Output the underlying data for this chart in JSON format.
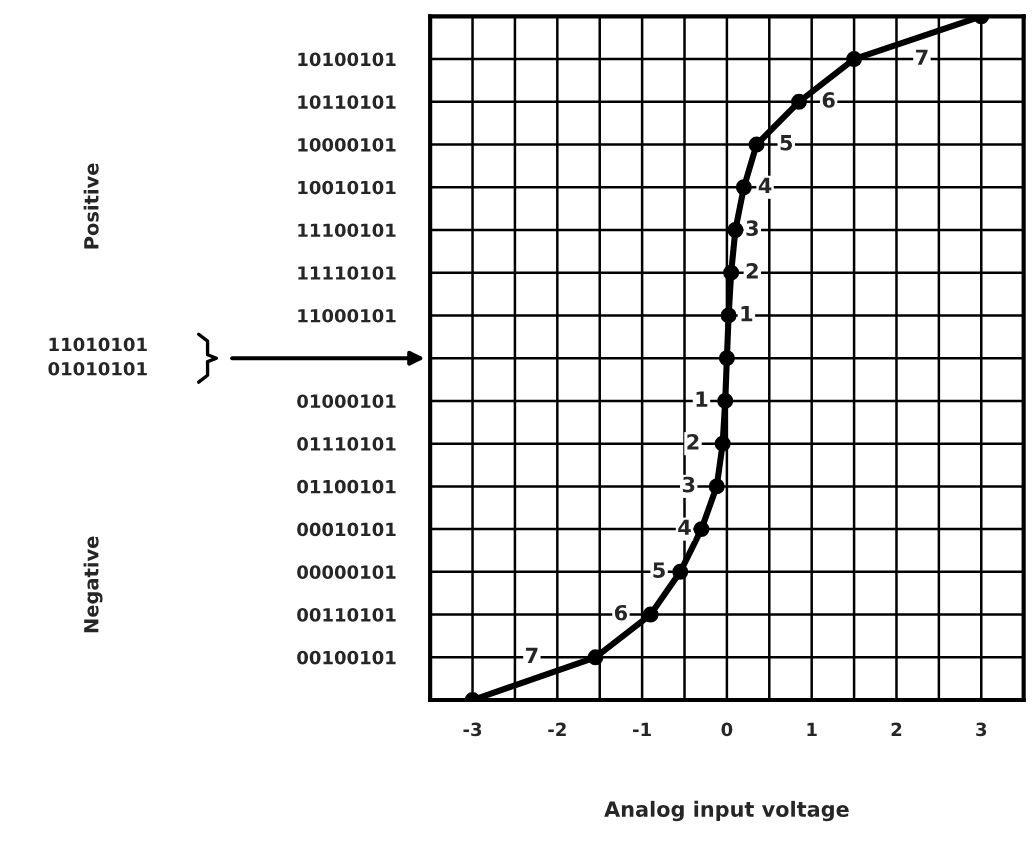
{
  "chart_data": {
    "type": "line",
    "orientation": "horizontal",
    "xlabel": "Analog input voltage",
    "categories": [
      null,
      "10100101",
      "10110101",
      "10000101",
      "10010101",
      "11100101",
      "11110101",
      "11000101",
      null,
      "01000101",
      "01110101",
      "01100101",
      "00010101",
      "00000101",
      "00110101",
      "00100101",
      null
    ],
    "series": [
      {
        "color": "#000000",
        "values": [
          3.0,
          1.5,
          0.85,
          0.35,
          0.2,
          0.1,
          0.05,
          0.02,
          0,
          -0.02,
          -0.05,
          -0.12,
          -0.3,
          -0.55,
          -0.9,
          -1.55,
          -3.0
        ]
      }
    ],
    "marker": "circle",
    "line_style": "solid",
    "xlim": [
      -3.5,
      3.5
    ],
    "xticks": [
      {
        "value": -3.5,
        "label": null
      },
      -3,
      {
        "value": -2.5,
        "label": null
      },
      -2,
      {
        "value": -1.5,
        "label": null
      },
      -1,
      {
        "value": -0.5,
        "label": null
      },
      0,
      {
        "value": 0.5,
        "label": null
      },
      1,
      {
        "value": 1.5,
        "label": null
      },
      2,
      {
        "value": 2.5,
        "label": null
      },
      3
    ],
    "grid": true,
    "annotations": [
      "Positive",
      "Negative",
      "11010101\n01010101",
      {
        "text": "1",
        "x": 0.23,
        "y": "11000101"
      },
      {
        "text": "2",
        "x": 0.3,
        "y": "11110101"
      },
      {
        "text": "3",
        "x": 0.3,
        "y": "11100101"
      },
      {
        "text": "4",
        "x": 0.45,
        "y": "10010101"
      },
      {
        "text": "5",
        "x": 0.7,
        "y": "10000101"
      },
      {
        "text": "6",
        "x": 1.2,
        "y": "10110101"
      },
      {
        "text": "7",
        "x": 2.3,
        "y": "10100101"
      },
      {
        "text": "1",
        "x": -0.3,
        "y": "01000101"
      },
      {
        "text": "2",
        "x": -0.4,
        "y": "01110101"
      },
      {
        "text": "3",
        "x": -0.45,
        "y": "01100101"
      },
      {
        "text": "4",
        "x": -0.5,
        "y": "00010101"
      },
      {
        "text": "5",
        "x": -0.8,
        "y": "00000101"
      },
      {
        "text": "6",
        "x": -1.25,
        "y": "00110101"
      },
      {
        "text": "7",
        "x": -2.3,
        "y": "00100101"
      }
    ]
  }
}
